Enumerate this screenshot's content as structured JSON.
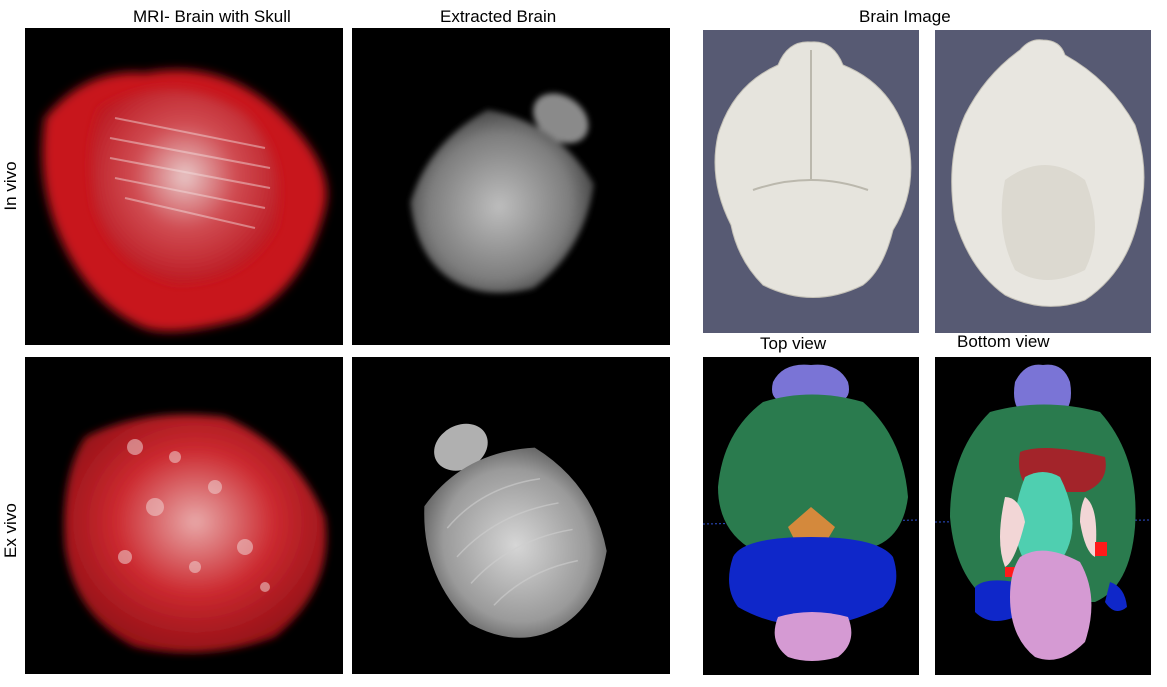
{
  "figure": {
    "column_titles": {
      "skull": "MRI- Brain with Skull",
      "extracted": "Extracted Brain",
      "brain_image": "Brain Image"
    },
    "row_labels": {
      "in_vivo": "In vivo",
      "ex_vivo": "Ex vivo"
    },
    "view_labels": {
      "top": "Top view",
      "bottom": "Bottom view"
    },
    "colors": {
      "panel_black": "#000000",
      "surface_background": "#575a73",
      "skull_red": "#d0161c",
      "brain_gray": "#9a9a9a",
      "surface_white": "#e8e6e0",
      "region_purple": "#7a74d6",
      "region_green": "#2a7b4e",
      "region_blue": "#0f27c9",
      "region_orange": "#d4893c",
      "region_pink": "#d59ad3",
      "region_darkred": "#a3242a",
      "region_teal": "#4fcfb0",
      "region_lightpink": "#f2d6d6",
      "region_red": "#ff1a1a"
    }
  }
}
